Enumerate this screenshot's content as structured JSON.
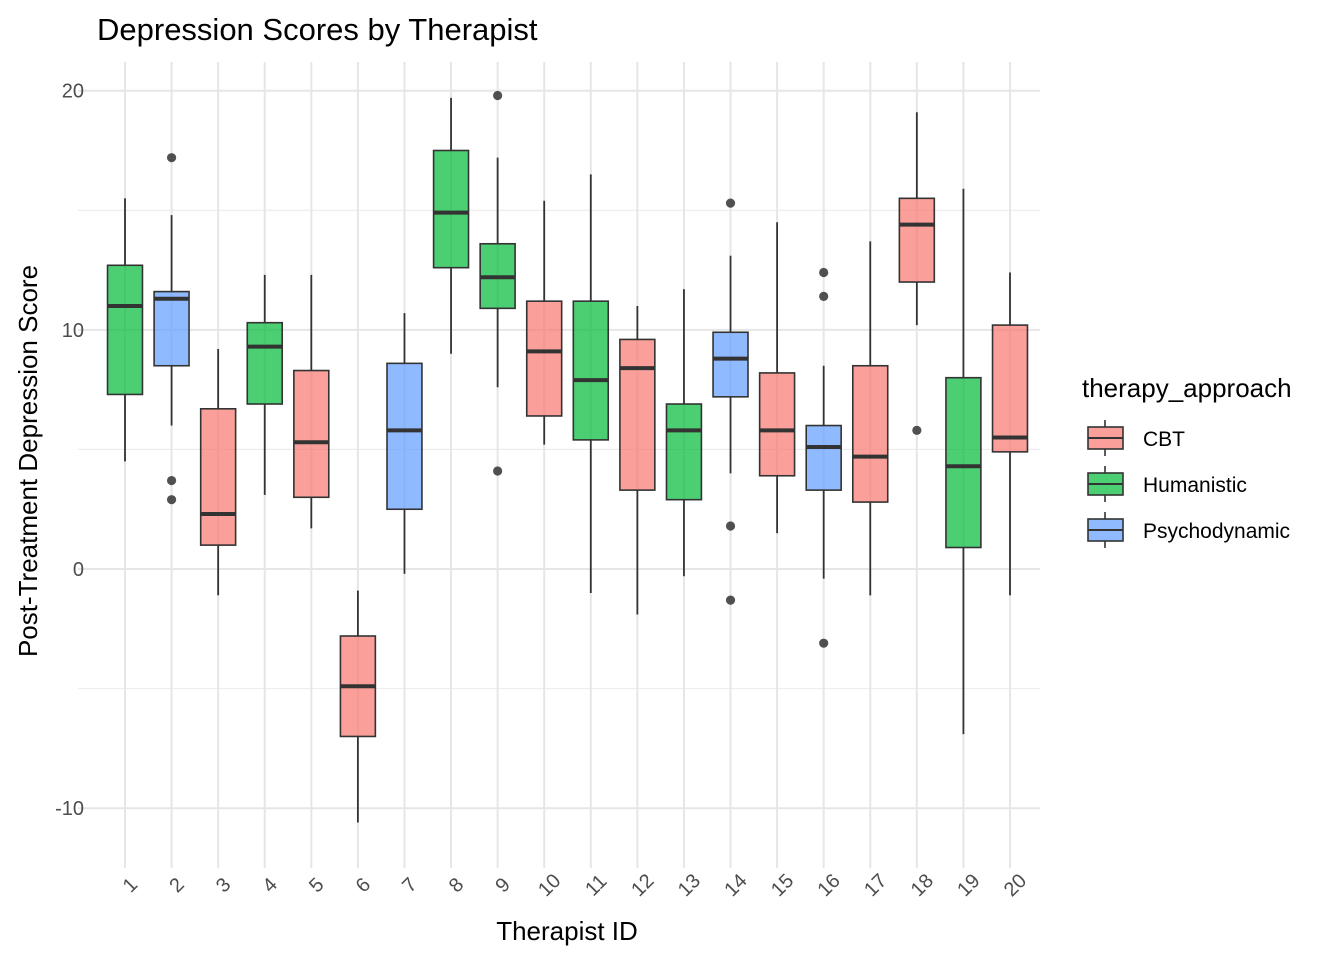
{
  "chart_data": {
    "type": "boxplot",
    "title": "Depression Scores by Therapist",
    "xlabel": "Therapist ID",
    "ylabel": "Post-Treatment Depression Score",
    "ylim": [
      -12.5,
      21.2
    ],
    "y_ticks": [
      -10,
      0,
      10,
      20
    ],
    "grid": true,
    "legend": {
      "title": "therapy_approach",
      "position": "right",
      "entries": [
        {
          "label": "CBT",
          "color": "#F8766D"
        },
        {
          "label": "Humanistic",
          "color": "#00BA38"
        },
        {
          "label": "Psychodynamic",
          "color": "#619CFF"
        }
      ]
    },
    "categories": [
      "1",
      "2",
      "3",
      "4",
      "5",
      "6",
      "7",
      "8",
      "9",
      "10",
      "11",
      "12",
      "13",
      "14",
      "15",
      "16",
      "17",
      "18",
      "19",
      "20"
    ],
    "boxes": [
      {
        "therapist": "1",
        "approach": "Humanistic",
        "lower_whisker": 4.5,
        "q1": 7.3,
        "median": 11.0,
        "q3": 12.7,
        "upper_whisker": 15.5,
        "outliers": []
      },
      {
        "therapist": "2",
        "approach": "Psychodynamic",
        "lower_whisker": 6.0,
        "q1": 8.5,
        "median": 11.3,
        "q3": 11.6,
        "upper_whisker": 14.8,
        "outliers": [
          17.2,
          3.7,
          2.9
        ]
      },
      {
        "therapist": "3",
        "approach": "CBT",
        "lower_whisker": -1.1,
        "q1": 1.0,
        "median": 2.3,
        "q3": 6.7,
        "upper_whisker": 9.2,
        "outliers": []
      },
      {
        "therapist": "4",
        "approach": "Humanistic",
        "lower_whisker": 3.1,
        "q1": 6.9,
        "median": 9.3,
        "q3": 10.3,
        "upper_whisker": 12.3,
        "outliers": []
      },
      {
        "therapist": "5",
        "approach": "CBT",
        "lower_whisker": 1.7,
        "q1": 3.0,
        "median": 5.3,
        "q3": 8.3,
        "upper_whisker": 12.3,
        "outliers": []
      },
      {
        "therapist": "6",
        "approach": "CBT",
        "lower_whisker": -10.6,
        "q1": -7.0,
        "median": -4.9,
        "q3": -2.8,
        "upper_whisker": -0.9,
        "outliers": []
      },
      {
        "therapist": "7",
        "approach": "Psychodynamic",
        "lower_whisker": -0.2,
        "q1": 2.5,
        "median": 5.8,
        "q3": 8.6,
        "upper_whisker": 10.7,
        "outliers": []
      },
      {
        "therapist": "8",
        "approach": "Humanistic",
        "lower_whisker": 9.0,
        "q1": 12.6,
        "median": 14.9,
        "q3": 17.5,
        "upper_whisker": 19.7,
        "outliers": []
      },
      {
        "therapist": "9",
        "approach": "Humanistic",
        "lower_whisker": 7.6,
        "q1": 10.9,
        "median": 12.2,
        "q3": 13.6,
        "upper_whisker": 17.2,
        "outliers": [
          19.8,
          4.1
        ]
      },
      {
        "therapist": "10",
        "approach": "CBT",
        "lower_whisker": 5.2,
        "q1": 6.4,
        "median": 9.1,
        "q3": 11.2,
        "upper_whisker": 15.4,
        "outliers": []
      },
      {
        "therapist": "11",
        "approach": "Humanistic",
        "lower_whisker": -1.0,
        "q1": 5.4,
        "median": 7.9,
        "q3": 11.2,
        "upper_whisker": 16.5,
        "outliers": []
      },
      {
        "therapist": "12",
        "approach": "CBT",
        "lower_whisker": -1.9,
        "q1": 3.3,
        "median": 8.4,
        "q3": 9.6,
        "upper_whisker": 11.0,
        "outliers": []
      },
      {
        "therapist": "13",
        "approach": "Humanistic",
        "lower_whisker": -0.3,
        "q1": 2.9,
        "median": 5.8,
        "q3": 6.9,
        "upper_whisker": 11.7,
        "outliers": []
      },
      {
        "therapist": "14",
        "approach": "Psychodynamic",
        "lower_whisker": 4.0,
        "q1": 7.2,
        "median": 8.8,
        "q3": 9.9,
        "upper_whisker": 13.1,
        "outliers": [
          15.3,
          1.8,
          -1.3
        ]
      },
      {
        "therapist": "15",
        "approach": "CBT",
        "lower_whisker": 1.5,
        "q1": 3.9,
        "median": 5.8,
        "q3": 8.2,
        "upper_whisker": 14.5,
        "outliers": []
      },
      {
        "therapist": "16",
        "approach": "Psychodynamic",
        "lower_whisker": -0.4,
        "q1": 3.3,
        "median": 5.1,
        "q3": 6.0,
        "upper_whisker": 8.5,
        "outliers": [
          12.4,
          11.4,
          -3.1
        ]
      },
      {
        "therapist": "17",
        "approach": "CBT",
        "lower_whisker": -1.1,
        "q1": 2.8,
        "median": 4.7,
        "q3": 8.5,
        "upper_whisker": 13.7,
        "outliers": []
      },
      {
        "therapist": "18",
        "approach": "CBT",
        "lower_whisker": 10.2,
        "q1": 12.0,
        "median": 14.4,
        "q3": 15.5,
        "upper_whisker": 19.1,
        "outliers": [
          5.8
        ]
      },
      {
        "therapist": "19",
        "approach": "Humanistic",
        "lower_whisker": -6.9,
        "q1": 0.9,
        "median": 4.3,
        "q3": 8.0,
        "upper_whisker": 15.9,
        "outliers": []
      },
      {
        "therapist": "20",
        "approach": "CBT",
        "lower_whisker": -1.1,
        "q1": 4.9,
        "median": 5.5,
        "q3": 10.2,
        "upper_whisker": 12.4,
        "outliers": []
      }
    ]
  }
}
